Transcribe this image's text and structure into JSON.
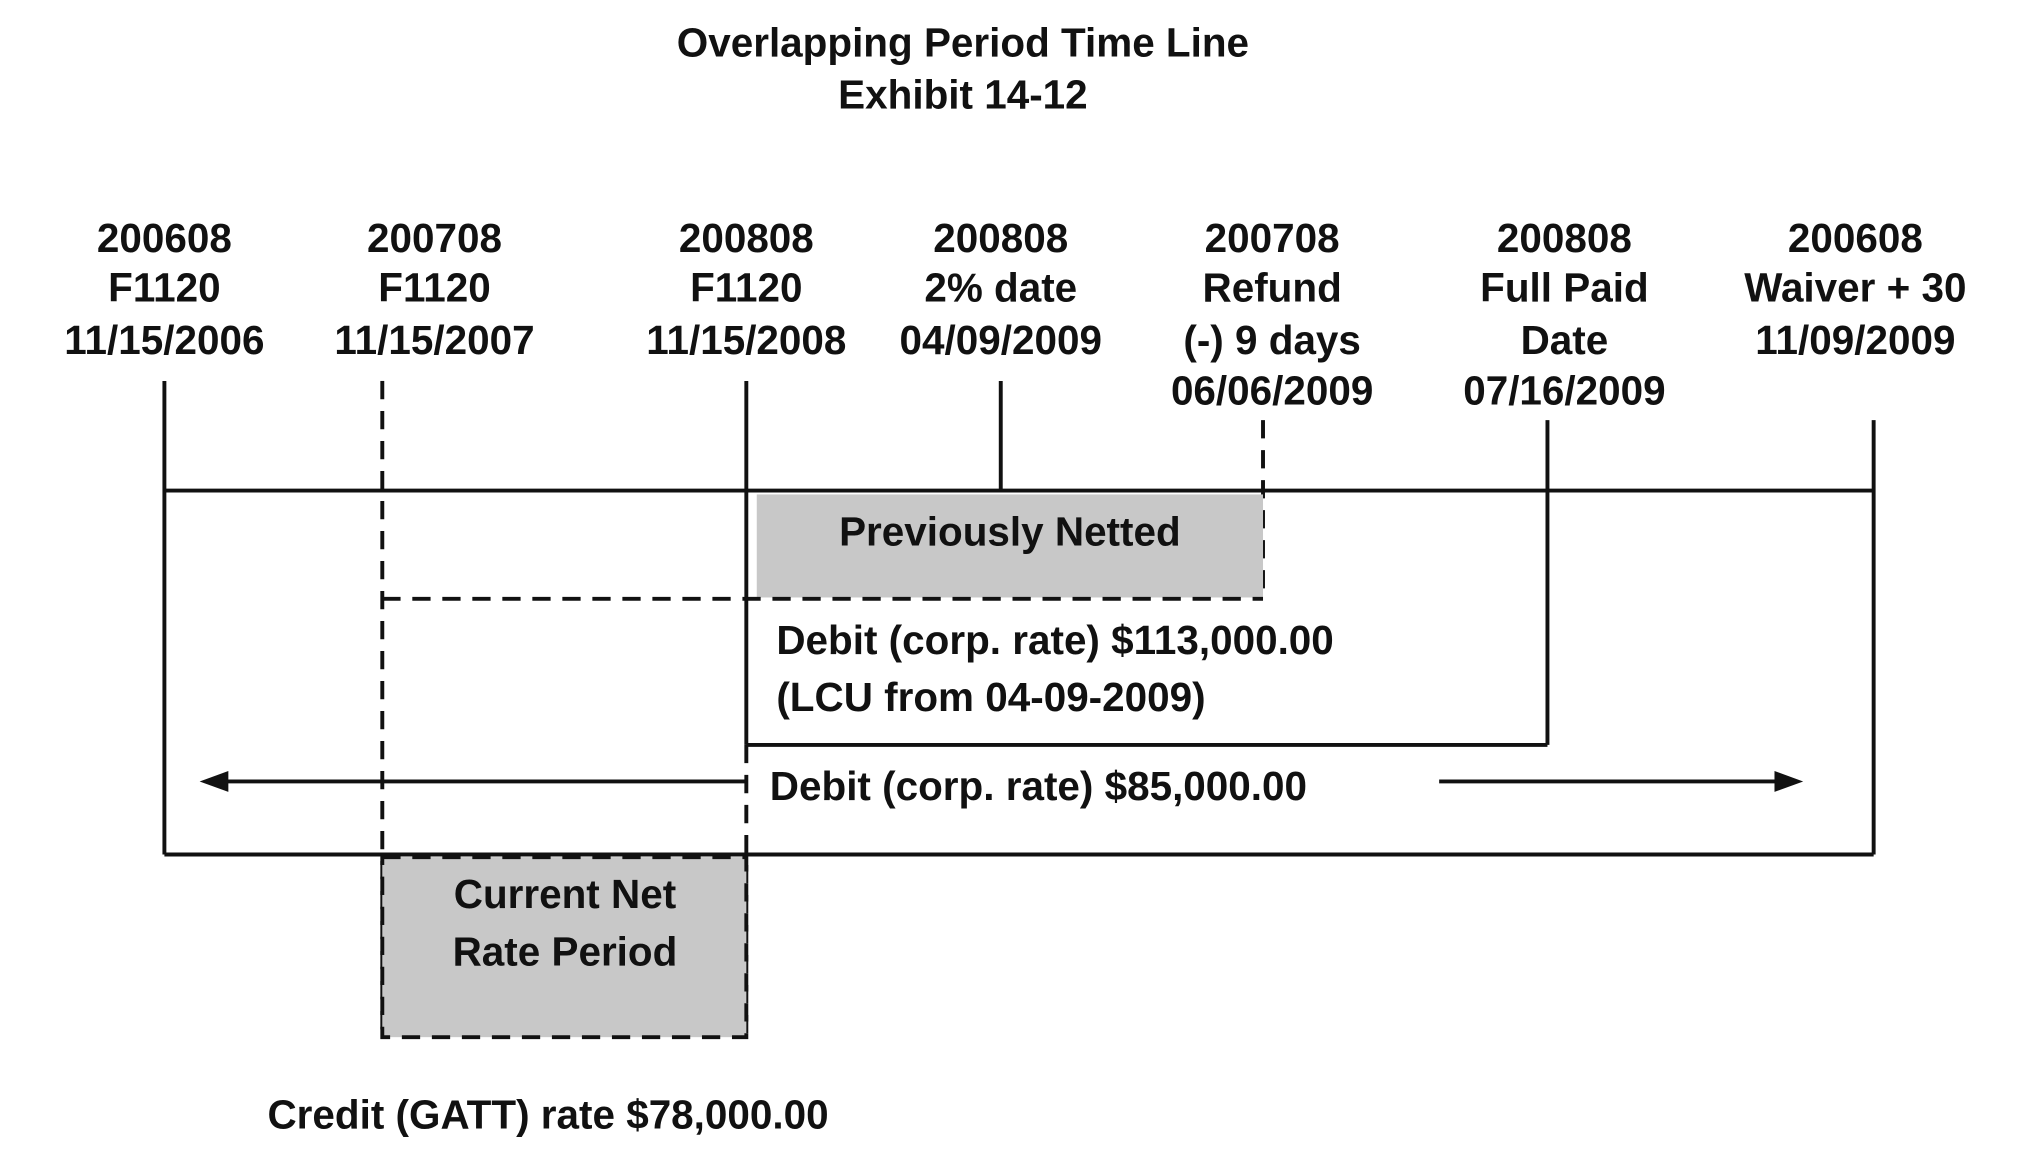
{
  "title": [
    "Overlapping Period Time Line",
    "Exhibit 14-12"
  ],
  "markers": [
    {
      "lines": [
        "200608",
        "F1120",
        "11/15/2006"
      ]
    },
    {
      "lines": [
        "200708",
        "F1120",
        "11/15/2007"
      ]
    },
    {
      "lines": [
        "200808",
        "F1120",
        "11/15/2008"
      ]
    },
    {
      "lines": [
        "200808",
        "2% date",
        "04/09/2009"
      ]
    },
    {
      "lines": [
        "200708",
        "Refund",
        "(-) 9 days",
        "06/06/2009"
      ]
    },
    {
      "lines": [
        "200808",
        "Full Paid",
        "Date",
        "07/16/2009"
      ]
    },
    {
      "lines": [
        "200608",
        "Waiver + 30",
        "11/09/2009"
      ]
    }
  ],
  "previously_netted": "Previously Netted",
  "debit_113": [
    "Debit (corp. rate) $113,000.00",
    "(LCU from 04-09-2009)"
  ],
  "debit_85": "Debit (corp. rate) $85,000.00",
  "current_net": [
    "Current Net",
    "Rate Period"
  ],
  "credit": "Credit (GATT) rate $78,000.00"
}
